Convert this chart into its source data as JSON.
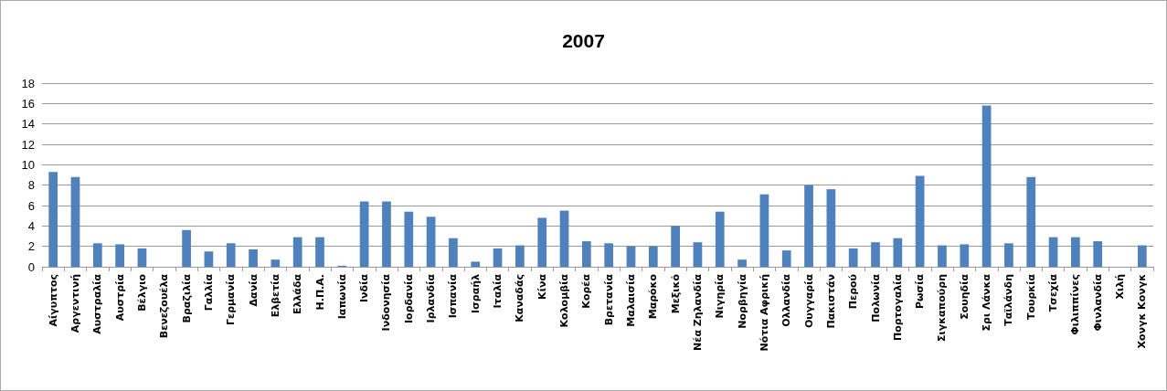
{
  "chart_data": {
    "type": "bar",
    "title": "2007",
    "categories": [
      "Αίγυπτος",
      "Αργεντινή",
      "Αυστραλία",
      "Αυστρία",
      "Βέλγιο",
      "Βενεζουέλα",
      "Βραζιλία",
      "Γαλλία",
      "Γερμανία",
      "Δανία",
      "Ελβετία",
      "Ελλάδα",
      "Η.Π.Α.",
      "Ιαπωνία",
      "Ινδία",
      "Ινδονησία",
      "Ιορδανία",
      "Ιρλανδία",
      "Ισπανία",
      "Ισραήλ",
      "Ιταλία",
      "Καναδάς",
      "Κίνα",
      "Κολομβία",
      "Κορέα",
      "Βρετανία",
      "Μαλαισία",
      "Μαρόκο",
      "Μεξικό",
      "Νέα Ζηλανδία",
      "Νιγηρία",
      "Νορβηγία",
      "Νότια Αφρική",
      "Ολλανδία",
      "Ουγγαρία",
      "Πακιστάν",
      "Περού",
      "Πολωνία",
      "Πορτογαλία",
      "Ρωσία",
      "Σιγκαπούρη",
      "Σουηδία",
      "Σρι Λάνκα",
      "Ταϊλάνδη",
      "Τουρκία",
      "Τσεχία",
      "Φιλιππίνες",
      "Φινλανδία",
      "Χιλή",
      "Χονγκ Κονγκ"
    ],
    "values": [
      9.3,
      8.8,
      2.3,
      2.2,
      1.8,
      null,
      3.6,
      1.5,
      2.3,
      1.7,
      0.7,
      2.9,
      2.9,
      0.1,
      6.4,
      6.4,
      5.4,
      4.9,
      2.8,
      0.5,
      1.8,
      2.1,
      4.8,
      5.5,
      2.5,
      2.3,
      2.0,
      2.0,
      4.0,
      2.4,
      5.4,
      0.7,
      7.1,
      1.6,
      8.0,
      7.6,
      1.8,
      2.4,
      2.8,
      8.9,
      2.1,
      2.2,
      15.8,
      2.3,
      8.8,
      2.9,
      2.9,
      2.5,
      null,
      2.1
    ],
    "color": "#4f81bd",
    "ylim": [
      0,
      18
    ],
    "yticks": [
      0,
      2,
      4,
      6,
      8,
      10,
      12,
      14,
      16,
      18
    ],
    "grid": "y"
  }
}
